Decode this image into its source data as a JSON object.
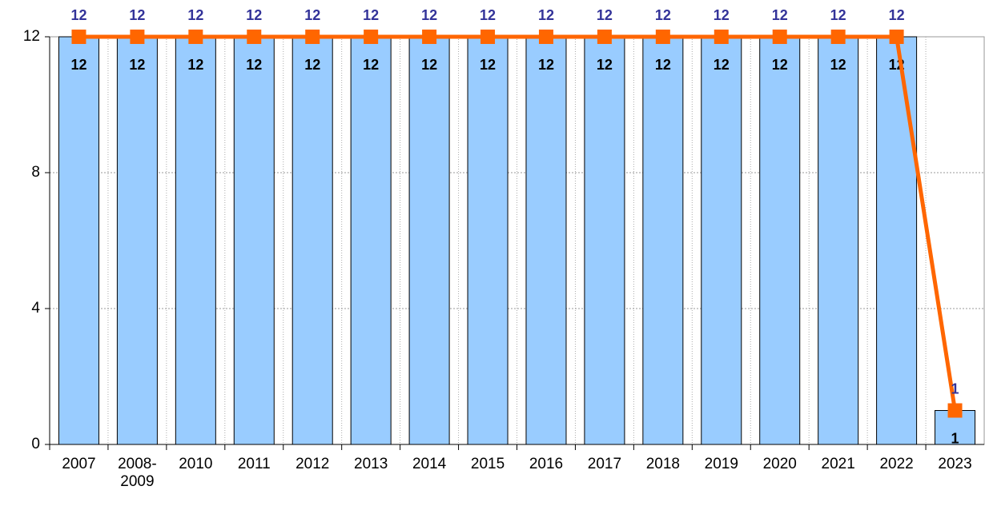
{
  "chart_data": {
    "type": "bar",
    "categories": [
      "2007",
      "2008-2009",
      "2010",
      "2011",
      "2012",
      "2013",
      "2014",
      "2015",
      "2016",
      "2017",
      "2018",
      "2019",
      "2020",
      "2021",
      "2022",
      "2023"
    ],
    "series": [
      {
        "type": "bar",
        "color": "#99ccff",
        "values": [
          12,
          12,
          12,
          12,
          12,
          12,
          12,
          12,
          12,
          12,
          12,
          12,
          12,
          12,
          12,
          1
        ]
      },
      {
        "type": "line",
        "color": "#ff6600",
        "label_color": "#333399",
        "values": [
          12,
          12,
          12,
          12,
          12,
          12,
          12,
          12,
          12,
          12,
          12,
          12,
          12,
          12,
          12,
          1
        ]
      }
    ],
    "ylim": [
      0,
      12
    ],
    "yticks": [
      0,
      4,
      8,
      12
    ],
    "grid": true
  }
}
